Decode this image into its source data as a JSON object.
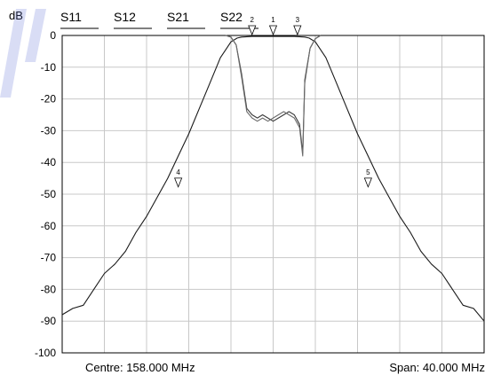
{
  "chart_data": {
    "type": "line",
    "ylabel": "dB",
    "ylim": [
      -100,
      0
    ],
    "yticks": [
      0,
      -10,
      -20,
      -30,
      -40,
      -50,
      -60,
      -70,
      -80,
      -90,
      -100
    ],
    "xlim": [
      138,
      178
    ],
    "x_gridlines": 10,
    "grid": true,
    "centre_label": "Centre: 158.000 MHz",
    "span_label": "Span: 40.000 MHz",
    "legend_labels": [
      "S11",
      "S12",
      "S21",
      "S22"
    ],
    "series": [
      {
        "key": "s21",
        "x": [
          138,
          139,
          140,
          141,
          142,
          143,
          144,
          145,
          146,
          147,
          148,
          149,
          150,
          151,
          152,
          153,
          154,
          154.6,
          155,
          155.5,
          156,
          156.5,
          157,
          157.5,
          158,
          158.5,
          159,
          159.5,
          160,
          160.5,
          161,
          161.4,
          162,
          163,
          164,
          165,
          166,
          167,
          168,
          169,
          170,
          171,
          172,
          173,
          174,
          175,
          176,
          177,
          178
        ],
        "values": [
          -88,
          -86,
          -85,
          -80,
          -75,
          -72,
          -68,
          -62,
          -57,
          -51,
          -45,
          -38,
          -31,
          -23,
          -15,
          -7,
          -2,
          -0.8,
          -0.5,
          -0.4,
          -0.3,
          -0.3,
          -0.3,
          -0.3,
          -0.3,
          -0.3,
          -0.3,
          -0.3,
          -0.3,
          -0.4,
          -0.5,
          -0.8,
          -2,
          -7,
          -15,
          -23,
          -31,
          -38,
          -45,
          -51,
          -57,
          -62,
          -68,
          -72,
          -75,
          -80,
          -85,
          -86,
          -90
        ]
      },
      {
        "key": "s11",
        "x": [
          153.5,
          154,
          154.5,
          155,
          155.5,
          156,
          156.5,
          157,
          157.5,
          158,
          158.5,
          159,
          159.5,
          160,
          160.5,
          160.8,
          161,
          161.5,
          162,
          162.5
        ],
        "values": [
          0,
          -0.5,
          -3,
          -12,
          -23,
          -25,
          -26,
          -25,
          -26,
          -27,
          -26,
          -25,
          -24,
          -25,
          -28,
          -37,
          -14,
          -4,
          -1,
          0
        ]
      },
      {
        "key": "s22",
        "x": [
          153.5,
          154,
          154.5,
          155,
          155.5,
          156,
          156.5,
          157,
          157.5,
          158,
          158.5,
          159,
          159.5,
          160,
          160.5,
          160.8,
          161,
          161.5,
          162,
          162.5
        ],
        "values": [
          0,
          -0.5,
          -3,
          -13,
          -24,
          -26,
          -27,
          -26,
          -27,
          -26,
          -25,
          -24,
          -25,
          -26,
          -29,
          -38,
          -15,
          -4,
          -1,
          0
        ]
      }
    ],
    "markers": [
      {
        "label": "1",
        "x": 158,
        "y": 0
      },
      {
        "label": "2",
        "x": 156,
        "y": 0
      },
      {
        "label": "3",
        "x": 160.3,
        "y": 0
      },
      {
        "label": "4",
        "x": 149,
        "y": -48
      },
      {
        "label": "5",
        "x": 167,
        "y": -48
      }
    ]
  }
}
